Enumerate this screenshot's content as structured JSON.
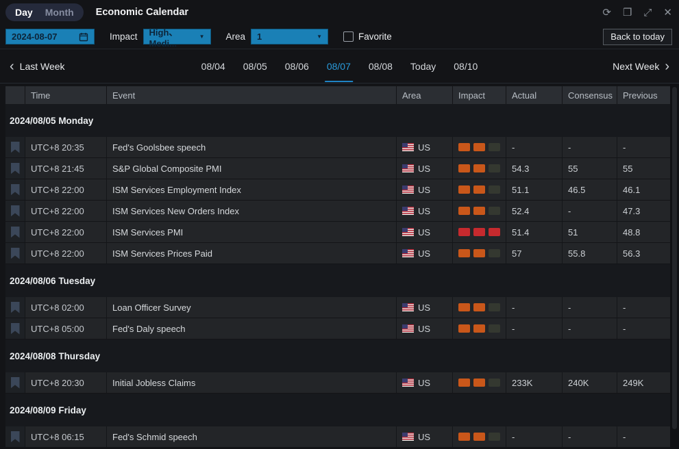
{
  "icons": {
    "refresh": "⟳",
    "restore": "❐",
    "expand": "⤢",
    "close": "✕",
    "caret_down": "▼",
    "chevron_left": "‹",
    "chevron_right": "›"
  },
  "colors": {
    "accent_blue": "#1a80b6",
    "selected_tab_blue": "#2a9bdc",
    "impact_medium_orange": "#c9571a",
    "impact_high_red": "#c62a2e",
    "impact_empty": "#343830"
  },
  "titlebar": {
    "tabs": {
      "day": "Day",
      "month": "Month"
    },
    "title": "Economic Calendar"
  },
  "filters": {
    "date_value": "2024-08-07",
    "impact_label": "Impact",
    "impact_value": "High、Medi...",
    "area_label": "Area",
    "area_value": "1",
    "favorite_label": "Favorite",
    "favorite_checked": false,
    "back_to_today_label": "Back to today"
  },
  "week_nav": {
    "prev_label": "Last Week",
    "next_label": "Next Week",
    "tabs": [
      "08/04",
      "08/05",
      "08/06",
      "08/07",
      "08/08",
      "Today",
      "08/10"
    ],
    "selected": "08/07"
  },
  "table": {
    "columns": [
      "Time",
      "Event",
      "Area",
      "Impact",
      "Actual",
      "Consensus",
      "Previous"
    ],
    "groups": [
      {
        "date": "2024/08/05 Monday",
        "rows": [
          {
            "time": "UTC+8 20:35",
            "event": "Fed's Goolsbee speech",
            "area": "US",
            "impact_level": 2,
            "actual": "-",
            "consensus": "-",
            "previous": "-"
          },
          {
            "time": "UTC+8 21:45",
            "event": "S&P Global Composite PMI",
            "area": "US",
            "impact_level": 2,
            "actual": "54.3",
            "consensus": "55",
            "previous": "55"
          },
          {
            "time": "UTC+8 22:00",
            "event": "ISM Services Employment Index",
            "area": "US",
            "impact_level": 2,
            "actual": "51.1",
            "consensus": "46.5",
            "previous": "46.1"
          },
          {
            "time": "UTC+8 22:00",
            "event": "ISM Services New Orders Index",
            "area": "US",
            "impact_level": 2,
            "actual": "52.4",
            "consensus": "-",
            "previous": "47.3"
          },
          {
            "time": "UTC+8 22:00",
            "event": "ISM Services PMI",
            "area": "US",
            "impact_level": 3,
            "actual": "51.4",
            "consensus": "51",
            "previous": "48.8"
          },
          {
            "time": "UTC+8 22:00",
            "event": "ISM Services Prices Paid",
            "area": "US",
            "impact_level": 2,
            "actual": "57",
            "consensus": "55.8",
            "previous": "56.3"
          }
        ]
      },
      {
        "date": "2024/08/06 Tuesday",
        "rows": [
          {
            "time": "UTC+8 02:00",
            "event": "Loan Officer Survey",
            "area": "US",
            "impact_level": 2,
            "actual": "-",
            "consensus": "-",
            "previous": "-"
          },
          {
            "time": "UTC+8 05:00",
            "event": "Fed's Daly speech",
            "area": "US",
            "impact_level": 2,
            "actual": "-",
            "consensus": "-",
            "previous": "-"
          }
        ]
      },
      {
        "date": "2024/08/08 Thursday",
        "rows": [
          {
            "time": "UTC+8 20:30",
            "event": "Initial Jobless Claims",
            "area": "US",
            "impact_level": 2,
            "actual": "233K",
            "consensus": "240K",
            "previous": "249K"
          }
        ]
      },
      {
        "date": "2024/08/09 Friday",
        "rows": [
          {
            "time": "UTC+8 06:15",
            "event": "Fed's Schmid speech",
            "area": "US",
            "impact_level": 2,
            "actual": "-",
            "consensus": "-",
            "previous": "-"
          }
        ]
      }
    ]
  }
}
